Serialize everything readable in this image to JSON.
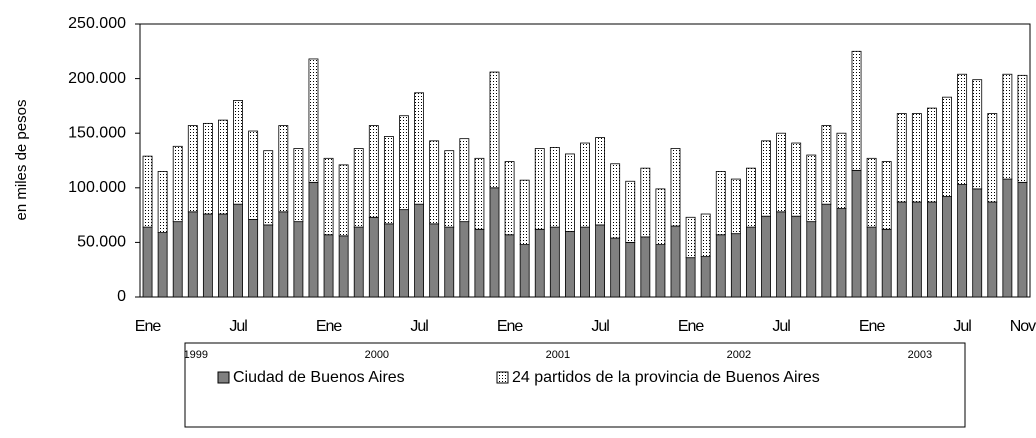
{
  "chart_data": {
    "type": "stacked-bar",
    "y_axis_label": "en miles de pesos",
    "categories": [
      "Ene",
      null,
      null,
      null,
      null,
      null,
      "Jul",
      null,
      null,
      null,
      null,
      null,
      "Ene",
      null,
      null,
      null,
      null,
      null,
      "Jul",
      null,
      null,
      null,
      null,
      null,
      "Ene",
      null,
      null,
      null,
      null,
      null,
      "Jul",
      null,
      null,
      null,
      null,
      null,
      "Ene",
      null,
      null,
      null,
      null,
      null,
      "Jul",
      null,
      null,
      null,
      null,
      null,
      "Ene",
      null,
      null,
      null,
      null,
      null,
      "Jul",
      null,
      null,
      null,
      "Nov"
    ],
    "years": [
      "1999",
      "2000",
      "2001",
      "2002",
      "2003"
    ],
    "series": [
      {
        "name": "Ciudad de Buenos Aires",
        "color": "#808080",
        "values": [
          64000,
          59000,
          69000,
          78000,
          76000,
          76000,
          85000,
          71000,
          66000,
          78000,
          69000,
          105000,
          57000,
          56000,
          64000,
          73000,
          67000,
          80000,
          85000,
          67000,
          64000,
          69000,
          62000,
          100000,
          57000,
          48000,
          62000,
          64000,
          60000,
          64000,
          66000,
          54000,
          50000,
          55000,
          48000,
          65000,
          36000,
          37000,
          57000,
          58000,
          64000,
          74000,
          78000,
          74000,
          69000,
          85000,
          81000,
          116000,
          64000,
          62000,
          87000,
          87000,
          87000,
          92000,
          103000,
          99000,
          87000,
          108000,
          105000
        ]
      },
      {
        "name": "24 partidos de la provincia de Buenos Aires",
        "color": "#ffffff",
        "values": [
          65000,
          56000,
          69000,
          79000,
          83000,
          86000,
          95000,
          81000,
          68000,
          79000,
          67000,
          113000,
          70000,
          65000,
          72000,
          84000,
          80000,
          86000,
          102000,
          76000,
          70000,
          76000,
          65000,
          106000,
          67000,
          59000,
          74000,
          73000,
          71000,
          77000,
          80000,
          68000,
          56000,
          63000,
          51000,
          71000,
          37000,
          39000,
          58000,
          50000,
          54000,
          69000,
          72000,
          67000,
          61000,
          72000,
          69000,
          109000,
          63000,
          62000,
          81000,
          81000,
          86000,
          91000,
          101000,
          100000,
          81000,
          96000,
          98000
        ]
      }
    ],
    "ylim": [
      0,
      250000
    ],
    "yticks": [
      0,
      {
        "value": 50000,
        "label": "50.000"
      },
      {
        "value": 100000,
        "label": "100.000"
      },
      {
        "value": 150000,
        "label": "150.000"
      },
      {
        "value": 200000,
        "label": "200.000"
      },
      {
        "value": 250000,
        "label": "250.000"
      }
    ],
    "grid": false
  }
}
